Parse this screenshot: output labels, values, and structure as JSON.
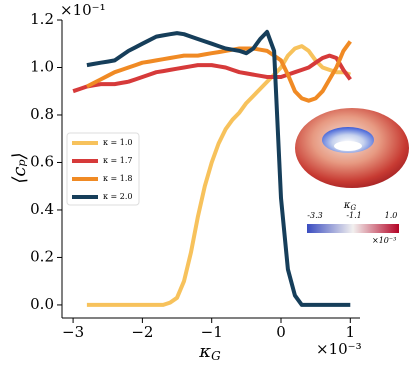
{
  "chart_data": {
    "type": "line",
    "xlabel": [
      "κ",
      "G"
    ],
    "ylabel": "⟨cₚ⟩",
    "x_multiplier": "×10⁻³",
    "y_multiplier": "×10⁻¹",
    "x": [
      -3.0,
      -2.9,
      -2.8,
      -2.7,
      -2.6,
      -2.5,
      -2.4,
      -2.3,
      -2.2,
      -2.1,
      -2.0,
      -1.9,
      -1.8,
      -1.7,
      -1.6,
      -1.5,
      -1.4,
      -1.3,
      -1.2,
      -1.1,
      -1.0,
      -0.9,
      -0.8,
      -0.7,
      -0.6,
      -0.5,
      -0.4,
      -0.3,
      -0.2,
      -0.1,
      0,
      0.1,
      0.2,
      0.3,
      0.4,
      0.5,
      0.6,
      0.7,
      0.8,
      0.9,
      1.0
    ],
    "series": [
      {
        "name": "κ = 1.0",
        "color": "#f7c25c",
        "values": [
          null,
          null,
          0,
          0,
          0,
          0,
          0,
          0,
          0,
          0,
          0,
          0,
          0,
          0,
          0.01,
          0.03,
          0.1,
          0.22,
          0.37,
          0.5,
          0.6,
          0.68,
          0.74,
          0.78,
          0.81,
          0.85,
          0.88,
          0.91,
          0.94,
          0.97,
          1.0,
          1.05,
          1.08,
          1.09,
          1.07,
          1.03,
          1.0,
          0.99,
          0.98,
          0.98,
          0.97
        ]
      },
      {
        "name": "κ = 1.7",
        "color": "#d63a3a",
        "values": [
          0.9,
          0.91,
          0.92,
          0.925,
          0.93,
          0.93,
          0.93,
          0.935,
          0.94,
          0.95,
          0.96,
          0.97,
          0.98,
          0.985,
          0.99,
          0.995,
          1.0,
          1.005,
          1.01,
          1.01,
          1.01,
          1.005,
          1.0,
          0.99,
          0.98,
          0.975,
          0.97,
          0.965,
          0.96,
          0.96,
          0.96,
          0.97,
          0.98,
          0.99,
          1.0,
          1.02,
          1.04,
          1.05,
          1.04,
          0.99,
          0.95
        ]
      },
      {
        "name": "κ = 1.8",
        "color": "#f08a24",
        "values": [
          null,
          null,
          0.92,
          0.935,
          0.95,
          0.965,
          0.98,
          0.99,
          1.0,
          1.01,
          1.02,
          1.025,
          1.03,
          1.035,
          1.04,
          1.045,
          1.05,
          1.05,
          1.05,
          1.055,
          1.06,
          1.065,
          1.07,
          1.075,
          1.08,
          1.08,
          1.08,
          1.075,
          1.07,
          1.05,
          1.03,
          0.97,
          0.9,
          0.87,
          0.86,
          0.87,
          0.9,
          0.95,
          1.0,
          1.07,
          1.11
        ]
      },
      {
        "name": "κ = 2.0",
        "color": "#163e5a",
        "values": [
          null,
          null,
          1.01,
          1.015,
          1.02,
          1.025,
          1.03,
          1.05,
          1.07,
          1.085,
          1.1,
          1.115,
          1.13,
          1.135,
          1.14,
          1.145,
          1.14,
          1.13,
          1.12,
          1.11,
          1.1,
          1.09,
          1.08,
          1.075,
          1.07,
          1.06,
          1.08,
          1.12,
          1.15,
          1.07,
          0.45,
          0.15,
          0.04,
          0,
          0,
          0,
          0,
          0,
          0,
          0,
          0
        ]
      }
    ],
    "xlim": [
      -3.16,
      1.14
    ],
    "ylim": [
      -0.055,
      1.2
    ],
    "xticks": [
      {
        "value": -3,
        "label": "−3"
      },
      {
        "value": -2,
        "label": "−2"
      },
      {
        "value": -1,
        "label": "−1"
      },
      0,
      1
    ],
    "yticks": [
      {
        "value": 0,
        "label": "0.0"
      },
      {
        "value": 0.2,
        "label": "0.2"
      },
      {
        "value": 0.4,
        "label": "0.4"
      },
      {
        "value": 0.6,
        "label": "0.6"
      },
      {
        "value": 0.8,
        "label": "0.8"
      },
      {
        "value": 1.0,
        "label": "1.0"
      },
      {
        "value": 1.2,
        "label": "1.2"
      }
    ],
    "legend": "center-left",
    "inset": {
      "label": [
        "κ",
        "G"
      ],
      "colorbar_lim": [
        -3.3,
        1.0
      ],
      "colorbar_ticks": [
        -3.3,
        -1.1,
        {
          "value": 1.0,
          "label": "1.0"
        }
      ],
      "multiplier": "×10⁻³"
    }
  }
}
